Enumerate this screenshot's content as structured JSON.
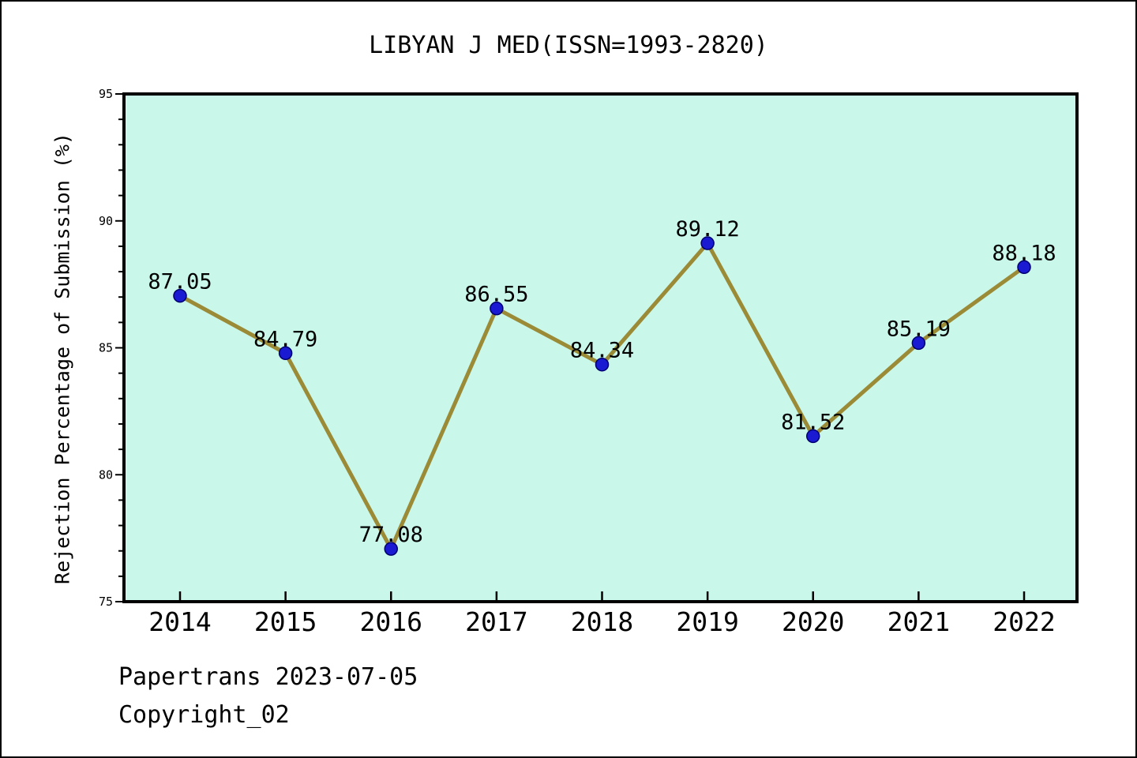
{
  "title": "LIBYAN J MED(ISSN=1993-2820)",
  "footer": {
    "line1": "Papertrans 2023-07-05",
    "line2": "Copyright_02"
  },
  "colors": {
    "figure_bg": "#ffffff",
    "plot_bg": "#c9f8eb",
    "line": "#9b8a36",
    "marker_fill": "#1a1ad2",
    "marker_edge": "#000070",
    "axis": "#000000",
    "text": "#000000"
  },
  "chart_data": {
    "type": "line",
    "title": "LIBYAN J MED(ISSN=1993-2820)",
    "xlabel": "",
    "ylabel": "Rejection Percentage of Submission (%)",
    "categories": [
      "2014",
      "2015",
      "2016",
      "2017",
      "2018",
      "2019",
      "2020",
      "2021",
      "2022"
    ],
    "series": [
      {
        "name": "Rejection Percentage of Submission",
        "values": [
          87.05,
          84.79,
          77.08,
          86.55,
          84.34,
          89.12,
          81.52,
          85.19,
          88.18
        ]
      }
    ],
    "value_labels": [
      "87.05",
      "84.79",
      "77.08",
      "86.55",
      "84.34",
      "89.12",
      "81.52",
      "85.19",
      "88.18"
    ],
    "ylim": [
      75,
      95
    ],
    "yticks_major": [
      75,
      80,
      85,
      90,
      95
    ],
    "y_minor_step": 1,
    "grid": false,
    "legend_position": "none",
    "marker": "circle",
    "annotations": "value shown above each data point"
  }
}
